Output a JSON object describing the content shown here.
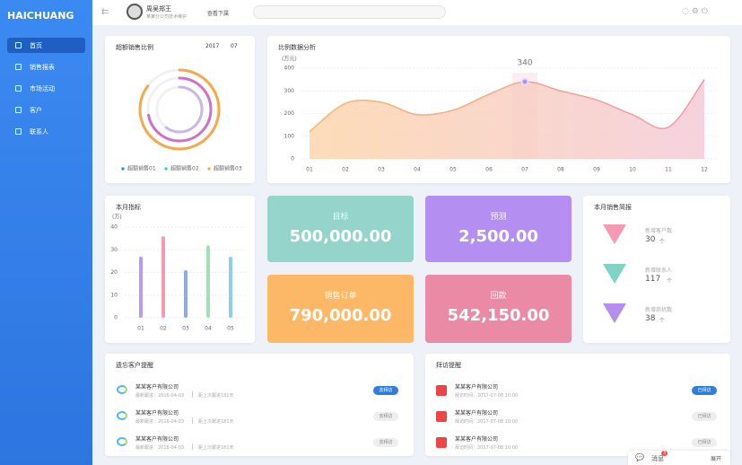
{
  "sidebar": {
    "logo": "HAICHUANG",
    "menu": [
      "首页",
      "销售报表",
      "市场活动",
      "客户",
      "联系人"
    ]
  },
  "header": {
    "user_name": "周吴郑王",
    "user_role": "某某分公司技术维护",
    "dropdown": "查看下属"
  },
  "ring_chart": {
    "type": "ring",
    "title": "超额销售比例",
    "year": "2017",
    "month": "07",
    "series": [
      {
        "name": "超额销售01",
        "color": "#1e88e5",
        "ring_color": "#f6a94b",
        "values": [
          85
        ]
      },
      {
        "name": "超额销售02",
        "color": "#26c6da",
        "ring_color": "#d070c8",
        "values": [
          72
        ]
      },
      {
        "name": "超额销售03",
        "color": "#f6a94b",
        "ring_color": "#c9b7e8",
        "values": [
          60
        ]
      }
    ]
  },
  "area_chart": {
    "type": "area",
    "title": "比例数据分析",
    "y_unit": "(万元)",
    "categories": [
      "01",
      "02",
      "03",
      "04",
      "05",
      "06",
      "07",
      "08",
      "09",
      "10",
      "11",
      "12"
    ],
    "values": [
      120,
      245,
      250,
      195,
      215,
      285,
      340,
      300,
      260,
      195,
      140,
      350
    ],
    "ylim": [
      0,
      400
    ],
    "yticks": [
      0,
      100,
      200,
      300,
      400
    ],
    "highlight_index": 6,
    "grid": true
  },
  "bar_chart": {
    "type": "bar",
    "title": "本月指标",
    "y_unit": "(万)",
    "categories": [
      "01",
      "02",
      "03",
      "04",
      "05"
    ],
    "values": [
      27,
      36,
      21,
      32,
      27
    ],
    "colors": [
      "#b99af0",
      "#f59ab0",
      "#8fa8f0",
      "#9fe0b8",
      "#8ed0e8"
    ],
    "ylim": [
      0,
      40
    ],
    "yticks": [
      0,
      10,
      20,
      30,
      40
    ],
    "grid": true
  },
  "stat_cards": [
    {
      "label": "目标",
      "value": "500,000.00"
    },
    {
      "label": "预测",
      "value": "2,500.00"
    },
    {
      "label": "销售订单",
      "value": "790,000.00"
    },
    {
      "label": "回款",
      "value": "542,150.00"
    }
  ],
  "brief": {
    "title": "本月销售简报",
    "items": [
      {
        "label": "新增客户数",
        "count": "30",
        "unit": "个"
      },
      {
        "label": "新增联系人",
        "count": "117",
        "unit": "个"
      },
      {
        "label": "新增商机数",
        "count": "38",
        "unit": "个"
      }
    ]
  },
  "forgotten": {
    "title": "遗忘客户提醒",
    "items": [
      {
        "company": "某某客户有限公司",
        "last_visit": "最新跟进：2016-04-03",
        "since": "距上次跟进181天",
        "action": "去拜访"
      },
      {
        "company": "某某客户有限公司",
        "last_visit": "最新跟进：2016-04-03",
        "since": "距上次跟进181天",
        "action": "去拜访"
      },
      {
        "company": "某某客户有限公司",
        "last_visit": "最新跟进：2016-04-03",
        "since": "距上次跟进181天",
        "action": "去拜访"
      }
    ]
  },
  "visits": {
    "title": "拜访提醒",
    "items": [
      {
        "company": "某某客户有限公司",
        "date": "拜访时间：2017-07-08 10:00",
        "status": "已拜访"
      },
      {
        "company": "某某客户有限公司",
        "date": "拜访时间：2017-07-08 10:00",
        "status": "已拜访"
      },
      {
        "company": "某某客户有限公司",
        "date": "拜访时间：2017-07-08 10:00",
        "status": "已拜访"
      }
    ]
  },
  "chat": {
    "label": "消息",
    "badge": "3",
    "expand": "展开"
  }
}
